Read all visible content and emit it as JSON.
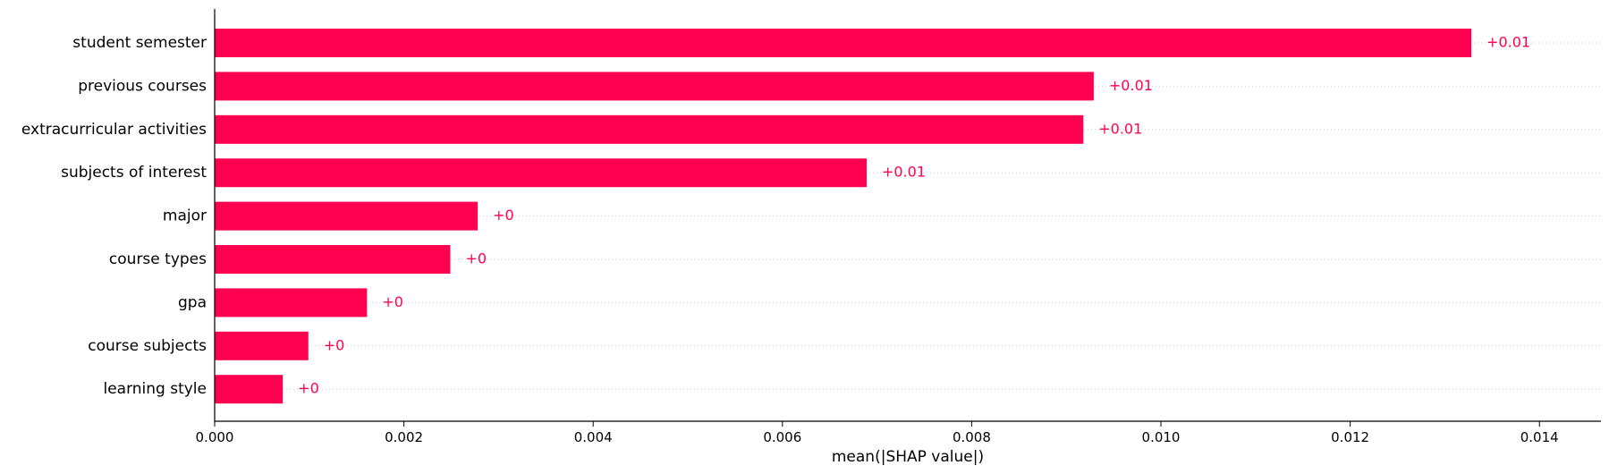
{
  "chart_data": {
    "type": "bar",
    "orientation": "horizontal",
    "categories": [
      "student semester",
      "previous courses",
      "extracurricular activities",
      "subjects of interest",
      "major",
      "course types",
      "gpa",
      "course subjects",
      "learning style"
    ],
    "values": [
      0.01328,
      0.00929,
      0.00918,
      0.00689,
      0.00278,
      0.00249,
      0.00161,
      0.00099,
      0.00072
    ],
    "data_labels": [
      "+0.01",
      "+0.01",
      "+0.01",
      "+0.01",
      "+0",
      "+0",
      "+0",
      "+0",
      "+0"
    ],
    "xlabel": "mean(|SHAP value|)",
    "xlim": [
      0,
      0.01465
    ],
    "xticks": [
      0.0,
      0.002,
      0.004,
      0.006,
      0.008,
      0.01,
      0.012,
      0.014
    ],
    "xtick_labels": [
      "0.000",
      "0.002",
      "0.004",
      "0.006",
      "0.008",
      "0.010",
      "0.012",
      "0.014"
    ],
    "grid": "horizontal dotted guide lines per row",
    "legend": "none",
    "colors": {
      "bar": "#ff0051",
      "label": "#ff0051",
      "grid": "#cccccc",
      "axis": "#000000"
    }
  }
}
